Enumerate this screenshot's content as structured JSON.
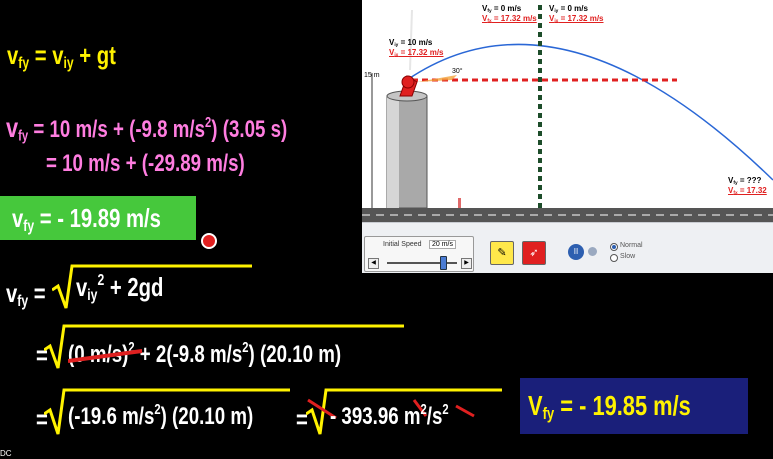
{
  "equations": {
    "eq1": {
      "lhs_v": "v",
      "lhs_sub": "fy",
      "rhs": "= v",
      "rhs_sub": "iy",
      "rhs2": " + gt"
    },
    "eq2": {
      "lhs_v": "v",
      "lhs_sub": "fy",
      "part1": "= 10 m/s + (-9.8 m/s",
      "sup": "2",
      "part2": ") (3.05 s)"
    },
    "eq3": {
      "text": "= 10 m/s + (-29.89 m/s)"
    },
    "eq4": {
      "lhs_v": "v",
      "lhs_sub": "fy",
      "text": "= - 19.89 m/s"
    },
    "eq5": {
      "lhs_v": "v",
      "lhs_sub": "fy",
      "eq": " =",
      "v": "v",
      "v_sub": "iy",
      "sup": "2",
      "rest": "+ 2gd"
    },
    "eq6": {
      "eq": "=",
      "part1": "(0 m/s)",
      "sup1": "2",
      "part2": " + 2(-9.8 m/s",
      "sup2": "2",
      "part3": ") (20.10 m)"
    },
    "eq7": {
      "eq": "=",
      "part1": "(-19.6 m/s",
      "sup": "2",
      "part2": ") (20.10 m)",
      "eq2": "=",
      "part3": "- 393.96 m",
      "sup2": "2",
      "part4": "/s",
      "sup3": "2"
    },
    "answer": {
      "v": "V",
      "sub": "fy",
      "text": " = - 19.85 m/s"
    }
  },
  "simulation": {
    "height_marker": "15 m",
    "angle": "30°",
    "launch": {
      "vy_sym": "V",
      "vy_sub": "iy",
      "vy_val": " = 10 m/s",
      "vx_sym": "V",
      "vx_sub": "ix",
      "vx_val": " = 17.32 m/s"
    },
    "peak_left": {
      "vy_sym": "V",
      "vy_sub": "fy",
      "vy_val": " = 0 m/s",
      "vx_sym": "V",
      "vx_sub": "fx",
      "vx_val": " = 17.32 m/s"
    },
    "peak_right": {
      "vy_sym": "V",
      "vy_sub": "iy",
      "vy_val": " = 0 m/s",
      "vx_sym": "V",
      "vx_sub": "ix",
      "vx_val": " = 17.32 m/s"
    },
    "impact": {
      "vy_sym": "V",
      "vy_sub": "fy",
      "vy_val": " = ???",
      "vx_sym": "V",
      "vx_sub": "fx",
      "vx_val": " = 17.32"
    },
    "controls": {
      "speed_label": "Initial Speed",
      "speed_value": "20 m/s",
      "speed_fraction": 0.8,
      "left_arrow": "◀",
      "right_arrow": "▶",
      "erase_icon": "eraser-icon",
      "fire_icon": "cannon-icon",
      "play_symbol": "II",
      "mode_normal": "Normal",
      "mode_slow": "Slow"
    }
  },
  "watermark": "DC",
  "colors": {
    "yellow": "#fff200",
    "pink": "#ff7de0",
    "green_box": "#46c83c",
    "navy_box": "#1a1f7a",
    "accent_red": "#e02020"
  }
}
